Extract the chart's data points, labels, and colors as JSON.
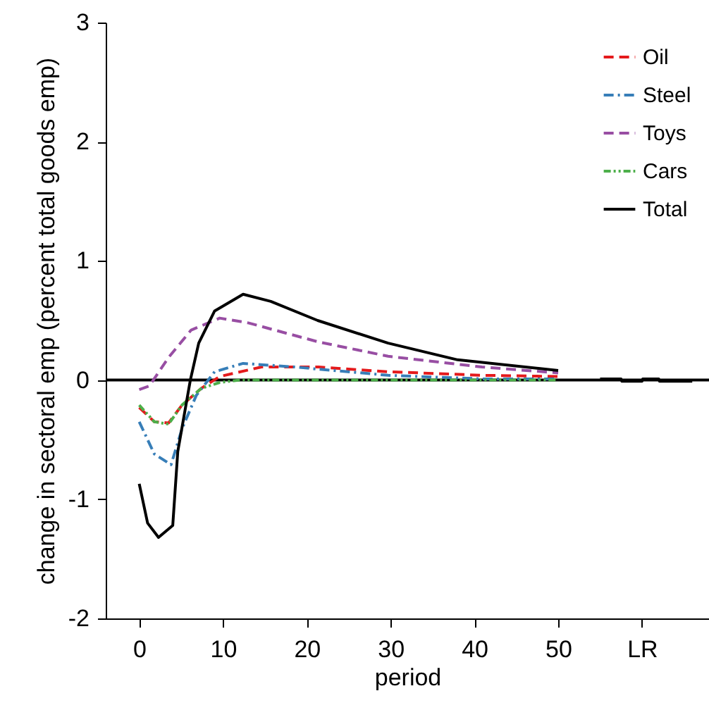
{
  "chart_data": {
    "type": "line",
    "xlabel": "period",
    "ylabel": "change in sectoral emp (percent total goods emp)",
    "xlim": [
      -4,
      68
    ],
    "ylim": [
      -2,
      3
    ],
    "xticks": [
      0,
      10,
      20,
      30,
      40,
      50,
      {
        "value": 60,
        "label": "LR"
      }
    ],
    "yticks": [
      -2,
      -1,
      0,
      1,
      2,
      3
    ],
    "grid": false,
    "legend": "top right",
    "ref_lines": [
      {
        "axis": "y",
        "value": 0,
        "color": "#000000"
      }
    ],
    "series": [
      {
        "name": "Oil",
        "color": "#e41a1c",
        "line_style": "dashed",
        "x": [
          0,
          1.8,
          3.5,
          5.1,
          7.4,
          9.6,
          14.6,
          21.4,
          29.7,
          41,
          50
        ],
        "values": [
          -0.23,
          -0.35,
          -0.36,
          -0.21,
          -0.07,
          0.03,
          0.11,
          0.11,
          0.07,
          0.04,
          0.03
        ]
      },
      {
        "name": "Steel",
        "color": "#377eb8",
        "line_style": "dashdot",
        "x": [
          0,
          1.8,
          3.8,
          5.1,
          6.8,
          9,
          12.4,
          18.5,
          29.7,
          41,
          50
        ],
        "values": [
          -0.35,
          -0.62,
          -0.71,
          -0.41,
          -0.13,
          0.07,
          0.14,
          0.11,
          0.04,
          0.01,
          0.01
        ]
      },
      {
        "name": "Toys",
        "color": "#984ea3",
        "line_style": "dashed",
        "x": [
          0,
          1.2,
          3.5,
          6.2,
          9.6,
          13,
          21.4,
          29.7,
          40.9,
          50
        ],
        "values": [
          -0.08,
          -0.05,
          0.19,
          0.42,
          0.52,
          0.48,
          0.32,
          0.2,
          0.11,
          0.06
        ]
      },
      {
        "name": "Cars",
        "color": "#4daf4a",
        "line_style": "dashdotdot",
        "x": [
          0,
          1.8,
          3.5,
          5.1,
          7.4,
          9.6,
          12,
          20,
          30,
          40,
          50
        ],
        "values": [
          -0.21,
          -0.35,
          -0.37,
          -0.21,
          -0.07,
          -0.02,
          0,
          0,
          0,
          0,
          0
        ]
      },
      {
        "name": "Total",
        "color": "#000000",
        "line_style": "solid",
        "x": [
          0,
          1,
          2.3,
          4,
          4.6,
          6.1,
          7.1,
          9,
          12.4,
          15.7,
          21.3,
          29.7,
          38,
          50,
          53,
          55,
          57.5,
          57.6,
          60,
          60.1,
          62,
          62.1,
          66
        ],
        "values": [
          -0.87,
          -1.2,
          -1.32,
          -1.22,
          -0.6,
          0,
          0.31,
          0.58,
          0.72,
          0.66,
          0.5,
          0.31,
          0.17,
          0.08,
          null,
          0.01,
          0.01,
          -0.01,
          -0.01,
          0.01,
          0.01,
          -0.01,
          -0.01
        ]
      }
    ]
  }
}
